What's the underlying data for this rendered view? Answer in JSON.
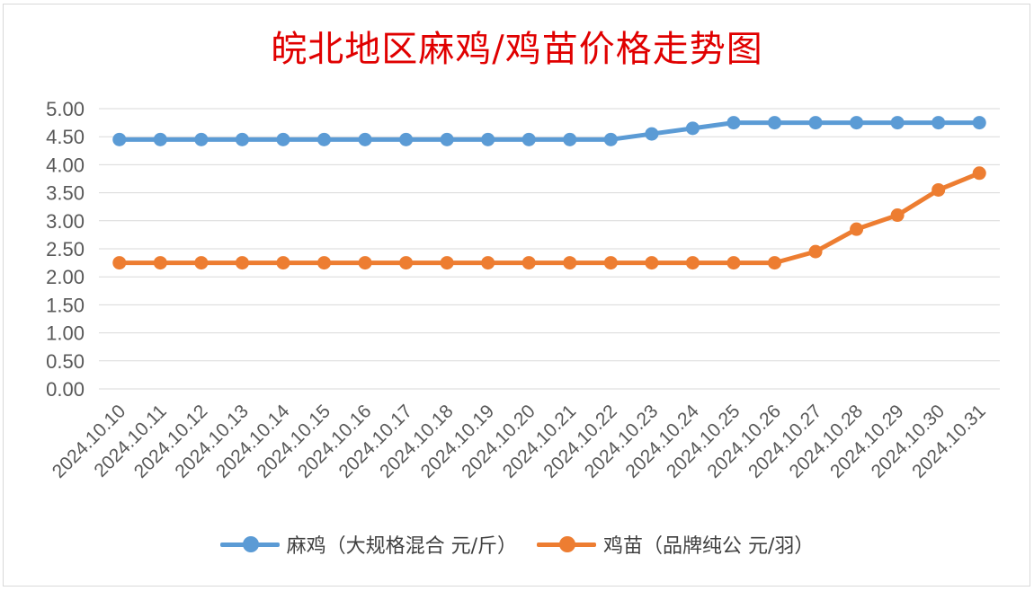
{
  "chart_data": {
    "type": "line",
    "title": "皖北地区麻鸡/鸡苗价格走势图",
    "xlabel": "",
    "ylabel": "",
    "ylim": [
      0,
      5
    ],
    "yticks": [
      "0.00",
      "0.50",
      "1.00",
      "1.50",
      "2.00",
      "2.50",
      "3.00",
      "3.50",
      "4.00",
      "4.50",
      "5.00"
    ],
    "grid": true,
    "legend_position": "bottom",
    "categories": [
      "2024.10.10",
      "2024.10.11",
      "2024.10.12",
      "2024.10.13",
      "2024.10.14",
      "2024.10.15",
      "2024.10.16",
      "2024.10.17",
      "2024.10.18",
      "2024.10.19",
      "2024.10.20",
      "2024.10.21",
      "2024.10.22",
      "2024.10.23",
      "2024.10.24",
      "2024.10.25",
      "2024.10.26",
      "2024.10.27",
      "2024.10.28",
      "2024.10.29",
      "2024.10.30",
      "2024.10.31"
    ],
    "series": [
      {
        "name": "麻鸡（大规格混合 元/斤）",
        "color": "#5b9bd5",
        "values": [
          4.45,
          4.45,
          4.45,
          4.45,
          4.45,
          4.45,
          4.45,
          4.45,
          4.45,
          4.45,
          4.45,
          4.45,
          4.45,
          4.55,
          4.65,
          4.75,
          4.75,
          4.75,
          4.75,
          4.75,
          4.75,
          4.75
        ]
      },
      {
        "name": "鸡苗（品牌纯公 元/羽）",
        "color": "#ed7d31",
        "values": [
          2.25,
          2.25,
          2.25,
          2.25,
          2.25,
          2.25,
          2.25,
          2.25,
          2.25,
          2.25,
          2.25,
          2.25,
          2.25,
          2.25,
          2.25,
          2.25,
          2.25,
          2.45,
          2.85,
          3.1,
          3.55,
          3.85
        ]
      }
    ]
  }
}
